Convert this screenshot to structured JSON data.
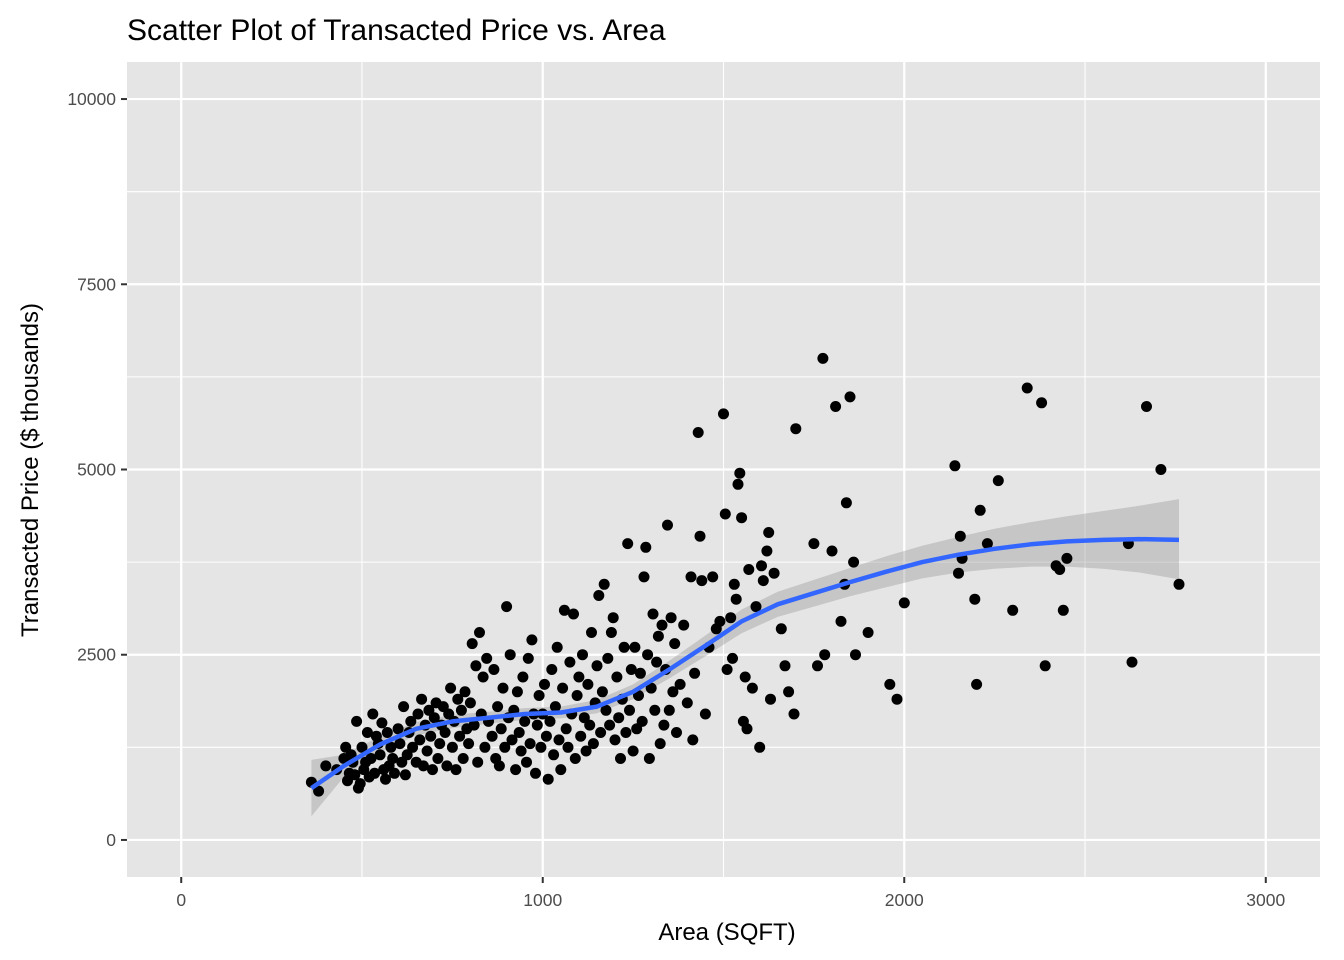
{
  "chart_data": {
    "type": "scatter",
    "title": "Scatter Plot of Transacted Price vs. Area",
    "xlabel": "Area (SQFT)",
    "ylabel": "Transacted Price ($ thousands)",
    "xlim": [
      -150,
      3150
    ],
    "ylim": [
      -500,
      10500
    ],
    "x_ticks": [
      0,
      1000,
      2000,
      3000
    ],
    "x_tick_labels": [
      "0",
      "1000",
      "2000",
      "3000"
    ],
    "y_ticks": [
      0,
      2500,
      5000,
      7500,
      10000
    ],
    "y_tick_labels": [
      "0",
      "2500",
      "5000",
      "7500",
      "10000"
    ],
    "grid": true,
    "colors": {
      "panel": "#e5e5e5",
      "grid": "#ffffff",
      "points": "#000000",
      "smooth_line": "#3366ff",
      "ribbon": "#999999"
    },
    "points": [
      [
        360,
        780
      ],
      [
        380,
        660
      ],
      [
        400,
        1000
      ],
      [
        430,
        950
      ],
      [
        450,
        1100
      ],
      [
        455,
        1250
      ],
      [
        460,
        800
      ],
      [
        465,
        900
      ],
      [
        470,
        1150
      ],
      [
        475,
        1050
      ],
      [
        480,
        880
      ],
      [
        485,
        1600
      ],
      [
        490,
        700
      ],
      [
        495,
        760
      ],
      [
        500,
        1250
      ],
      [
        505,
        950
      ],
      [
        510,
        1050
      ],
      [
        515,
        1450
      ],
      [
        520,
        850
      ],
      [
        525,
        1100
      ],
      [
        530,
        1700
      ],
      [
        535,
        900
      ],
      [
        540,
        1400
      ],
      [
        545,
        1300
      ],
      [
        550,
        1150
      ],
      [
        555,
        1580
      ],
      [
        560,
        950
      ],
      [
        565,
        820
      ],
      [
        570,
        1450
      ],
      [
        575,
        1000
      ],
      [
        580,
        1250
      ],
      [
        585,
        1100
      ],
      [
        590,
        900
      ],
      [
        600,
        1500
      ],
      [
        605,
        1300
      ],
      [
        610,
        1050
      ],
      [
        615,
        1800
      ],
      [
        620,
        880
      ],
      [
        625,
        1150
      ],
      [
        630,
        1450
      ],
      [
        635,
        1600
      ],
      [
        640,
        1250
      ],
      [
        650,
        1050
      ],
      [
        655,
        1700
      ],
      [
        660,
        1350
      ],
      [
        665,
        1900
      ],
      [
        670,
        1000
      ],
      [
        675,
        1550
      ],
      [
        680,
        1200
      ],
      [
        685,
        1750
      ],
      [
        690,
        1400
      ],
      [
        695,
        950
      ],
      [
        700,
        1650
      ],
      [
        705,
        1850
      ],
      [
        710,
        1100
      ],
      [
        715,
        1300
      ],
      [
        720,
        1550
      ],
      [
        725,
        1800
      ],
      [
        730,
        1450
      ],
      [
        735,
        1000
      ],
      [
        740,
        1700
      ],
      [
        745,
        2050
      ],
      [
        750,
        1250
      ],
      [
        755,
        1600
      ],
      [
        760,
        950
      ],
      [
        765,
        1900
      ],
      [
        770,
        1400
      ],
      [
        775,
        1750
      ],
      [
        780,
        1100
      ],
      [
        785,
        2000
      ],
      [
        790,
        1500
      ],
      [
        795,
        1300
      ],
      [
        800,
        1850
      ],
      [
        805,
        2650
      ],
      [
        810,
        1550
      ],
      [
        815,
        2350
      ],
      [
        820,
        1050
      ],
      [
        825,
        2800
      ],
      [
        830,
        1700
      ],
      [
        835,
        2200
      ],
      [
        840,
        1250
      ],
      [
        845,
        2450
      ],
      [
        850,
        1600
      ],
      [
        860,
        1400
      ],
      [
        865,
        2300
      ],
      [
        870,
        1100
      ],
      [
        875,
        1800
      ],
      [
        880,
        1000
      ],
      [
        885,
        1500
      ],
      [
        890,
        2050
      ],
      [
        895,
        1250
      ],
      [
        900,
        3150
      ],
      [
        905,
        1650
      ],
      [
        910,
        2500
      ],
      [
        915,
        1350
      ],
      [
        920,
        1750
      ],
      [
        925,
        950
      ],
      [
        930,
        2000
      ],
      [
        935,
        1450
      ],
      [
        940,
        1200
      ],
      [
        945,
        2200
      ],
      [
        950,
        1600
      ],
      [
        955,
        1050
      ],
      [
        960,
        2450
      ],
      [
        965,
        1300
      ],
      [
        970,
        2700
      ],
      [
        975,
        1700
      ],
      [
        980,
        900
      ],
      [
        985,
        1550
      ],
      [
        990,
        1950
      ],
      [
        995,
        1250
      ],
      [
        1000,
        1700
      ],
      [
        1005,
        2100
      ],
      [
        1010,
        1400
      ],
      [
        1015,
        820
      ],
      [
        1020,
        1600
      ],
      [
        1025,
        2300
      ],
      [
        1030,
        1150
      ],
      [
        1035,
        1800
      ],
      [
        1040,
        2600
      ],
      [
        1045,
        1350
      ],
      [
        1050,
        950
      ],
      [
        1055,
        2050
      ],
      [
        1060,
        3100
      ],
      [
        1065,
        1500
      ],
      [
        1070,
        1250
      ],
      [
        1075,
        2400
      ],
      [
        1080,
        1700
      ],
      [
        1085,
        3050
      ],
      [
        1090,
        1100
      ],
      [
        1095,
        1950
      ],
      [
        1100,
        2200
      ],
      [
        1105,
        1400
      ],
      [
        1110,
        2500
      ],
      [
        1115,
        1650
      ],
      [
        1120,
        1200
      ],
      [
        1125,
        2100
      ],
      [
        1130,
        1550
      ],
      [
        1135,
        2800
      ],
      [
        1140,
        1300
      ],
      [
        1145,
        1850
      ],
      [
        1150,
        2350
      ],
      [
        1155,
        3300
      ],
      [
        1160,
        1450
      ],
      [
        1165,
        2000
      ],
      [
        1170,
        3450
      ],
      [
        1175,
        1750
      ],
      [
        1180,
        2450
      ],
      [
        1185,
        1550
      ],
      [
        1190,
        2800
      ],
      [
        1195,
        3000
      ],
      [
        1200,
        1350
      ],
      [
        1205,
        2200
      ],
      [
        1210,
        1650
      ],
      [
        1215,
        1100
      ],
      [
        1220,
        1900
      ],
      [
        1225,
        2600
      ],
      [
        1230,
        1450
      ],
      [
        1235,
        4000
      ],
      [
        1240,
        1750
      ],
      [
        1245,
        2300
      ],
      [
        1250,
        1200
      ],
      [
        1255,
        2600
      ],
      [
        1260,
        1500
      ],
      [
        1265,
        1950
      ],
      [
        1270,
        2250
      ],
      [
        1275,
        1600
      ],
      [
        1280,
        3550
      ],
      [
        1285,
        3950
      ],
      [
        1290,
        2500
      ],
      [
        1295,
        1100
      ],
      [
        1300,
        2050
      ],
      [
        1305,
        3050
      ],
      [
        1310,
        1750
      ],
      [
        1315,
        2400
      ],
      [
        1320,
        2750
      ],
      [
        1325,
        1300
      ],
      [
        1330,
        2900
      ],
      [
        1335,
        1550
      ],
      [
        1340,
        2300
      ],
      [
        1345,
        4250
      ],
      [
        1350,
        1750
      ],
      [
        1355,
        3000
      ],
      [
        1360,
        2000
      ],
      [
        1365,
        2650
      ],
      [
        1370,
        1450
      ],
      [
        1380,
        2100
      ],
      [
        1390,
        2900
      ],
      [
        1400,
        1850
      ],
      [
        1410,
        3550
      ],
      [
        1415,
        1350
      ],
      [
        1420,
        2250
      ],
      [
        1430,
        5500
      ],
      [
        1435,
        4100
      ],
      [
        1440,
        3500
      ],
      [
        1450,
        1700
      ],
      [
        1460,
        2600
      ],
      [
        1470,
        3550
      ],
      [
        1480,
        2850
      ],
      [
        1490,
        2950
      ],
      [
        1500,
        5750
      ],
      [
        1505,
        4400
      ],
      [
        1510,
        2300
      ],
      [
        1520,
        3000
      ],
      [
        1525,
        2450
      ],
      [
        1530,
        3450
      ],
      [
        1535,
        3250
      ],
      [
        1540,
        4800
      ],
      [
        1545,
        4950
      ],
      [
        1550,
        4350
      ],
      [
        1555,
        1600
      ],
      [
        1560,
        2200
      ],
      [
        1565,
        1500
      ],
      [
        1570,
        3650
      ],
      [
        1580,
        2050
      ],
      [
        1590,
        3150
      ],
      [
        1600,
        1250
      ],
      [
        1605,
        3700
      ],
      [
        1610,
        3500
      ],
      [
        1620,
        3900
      ],
      [
        1625,
        4150
      ],
      [
        1630,
        1900
      ],
      [
        1640,
        3600
      ],
      [
        1660,
        2850
      ],
      [
        1670,
        2350
      ],
      [
        1680,
        2000
      ],
      [
        1695,
        1700
      ],
      [
        1700,
        5550
      ],
      [
        1750,
        4000
      ],
      [
        1760,
        2350
      ],
      [
        1775,
        6500
      ],
      [
        1780,
        2500
      ],
      [
        1800,
        3900
      ],
      [
        1810,
        5850
      ],
      [
        1825,
        2950
      ],
      [
        1835,
        3450
      ],
      [
        1840,
        4550
      ],
      [
        1850,
        5980
      ],
      [
        1860,
        3750
      ],
      [
        1865,
        2500
      ],
      [
        1900,
        2800
      ],
      [
        1960,
        2100
      ],
      [
        1980,
        1900
      ],
      [
        2000,
        3200
      ],
      [
        2140,
        5050
      ],
      [
        2150,
        3600
      ],
      [
        2155,
        4100
      ],
      [
        2160,
        3800
      ],
      [
        2195,
        3250
      ],
      [
        2200,
        2100
      ],
      [
        2210,
        4450
      ],
      [
        2230,
        4000
      ],
      [
        2260,
        4850
      ],
      [
        2300,
        3100
      ],
      [
        2340,
        6100
      ],
      [
        2380,
        5900
      ],
      [
        2390,
        2350
      ],
      [
        2420,
        3700
      ],
      [
        2430,
        3650
      ],
      [
        2440,
        3100
      ],
      [
        2450,
        3800
      ],
      [
        2620,
        4000
      ],
      [
        2630,
        2400
      ],
      [
        2670,
        5850
      ],
      [
        2710,
        5000
      ],
      [
        2760,
        3450
      ]
    ],
    "smooth": {
      "method": "loess",
      "x": [
        360,
        450,
        550,
        650,
        750,
        850,
        950,
        1050,
        1150,
        1250,
        1350,
        1450,
        1550,
        1650,
        1750,
        1850,
        1950,
        2050,
        2150,
        2250,
        2350,
        2450,
        2550,
        2650,
        2760
      ],
      "y": [
        700,
        1000,
        1290,
        1500,
        1600,
        1650,
        1700,
        1720,
        1800,
        2000,
        2300,
        2620,
        2950,
        3180,
        3330,
        3480,
        3620,
        3750,
        3850,
        3930,
        3990,
        4030,
        4050,
        4060,
        4050
      ],
      "lower": [
        320,
        850,
        1180,
        1410,
        1510,
        1570,
        1620,
        1640,
        1710,
        1900,
        2180,
        2480,
        2790,
        3010,
        3150,
        3290,
        3410,
        3530,
        3610,
        3660,
        3690,
        3690,
        3660,
        3610,
        3520
      ],
      "upper": [
        1080,
        1150,
        1400,
        1590,
        1690,
        1730,
        1780,
        1800,
        1890,
        2100,
        2420,
        2760,
        3110,
        3350,
        3510,
        3670,
        3830,
        3970,
        4090,
        4200,
        4290,
        4370,
        4440,
        4510,
        4600
      ]
    }
  }
}
